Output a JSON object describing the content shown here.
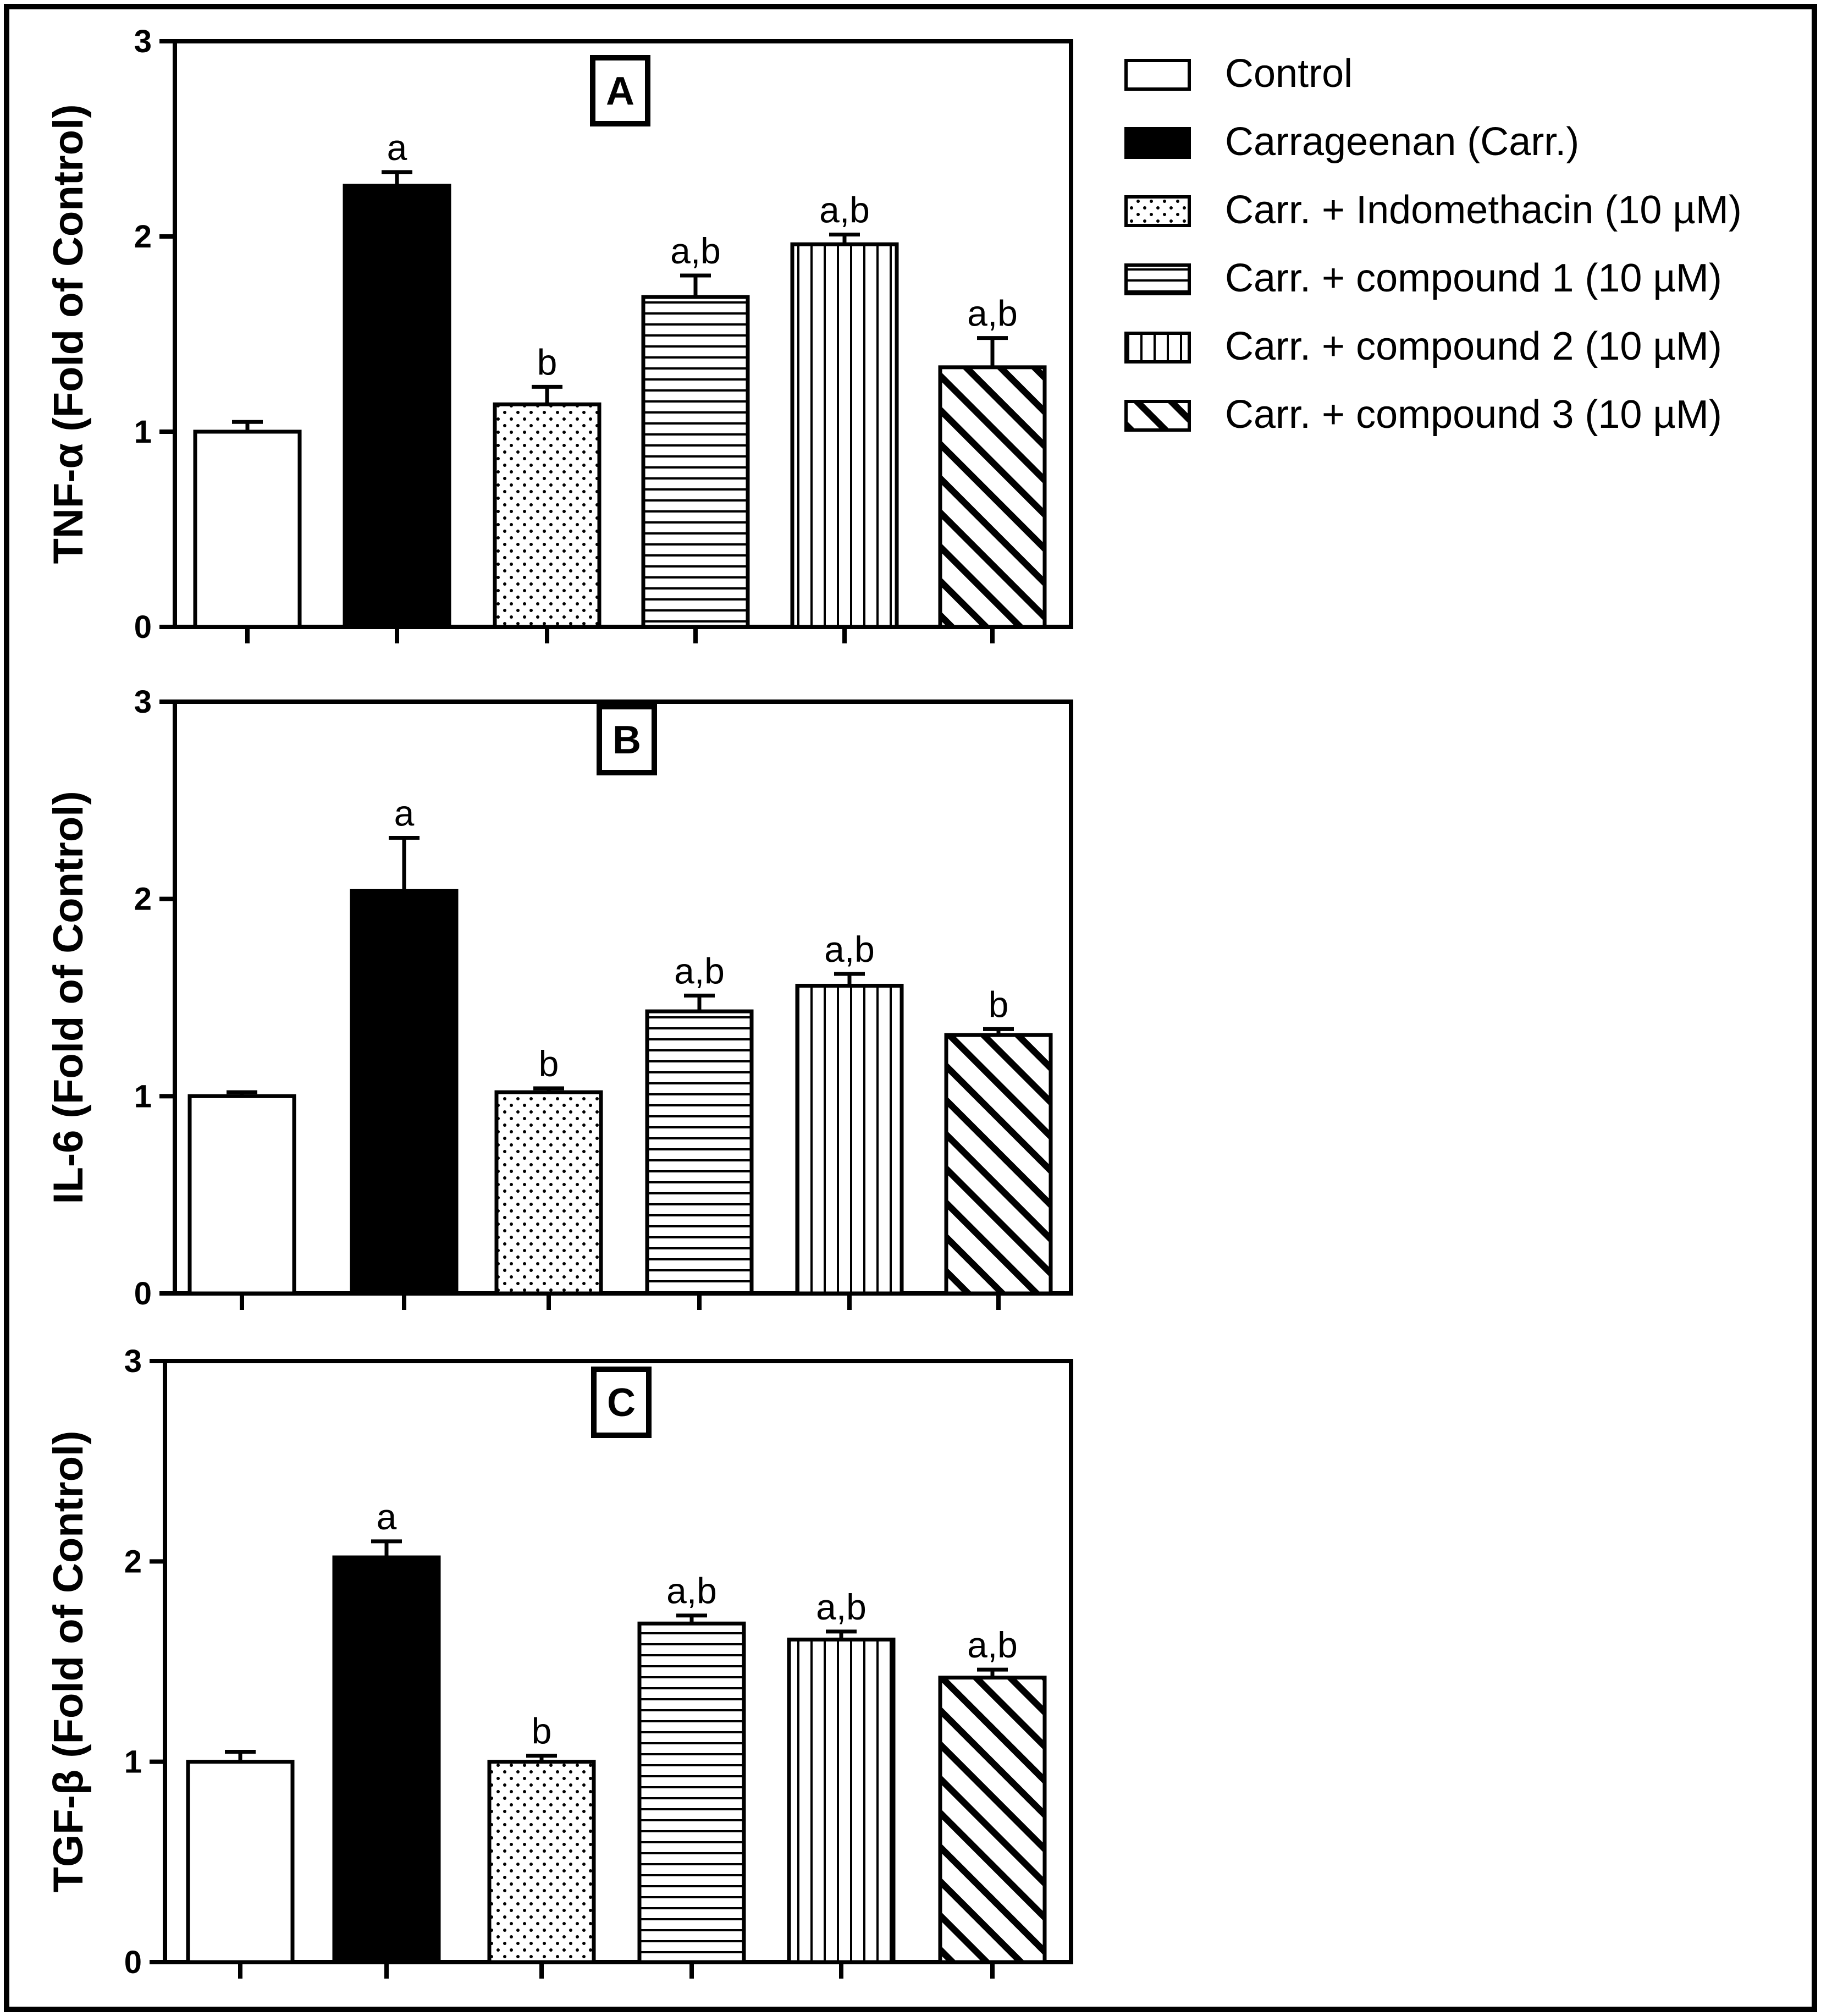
{
  "chart_data": [
    {
      "type": "bar",
      "panel": "A",
      "ylabel": "TNF-α (Fold of Control)",
      "ylim": [
        0,
        3
      ],
      "yticks": [
        "0",
        "1",
        "2",
        "3"
      ],
      "categories": [
        "Control",
        "Carrageenan (Carr.)",
        "Carr. + Indomethacin (10 µM)",
        "Carr. + compound 1 (10 µM)",
        "Carr. + compound 2 (10 µM)",
        "Carr. + compound 3 (10 µM)"
      ],
      "values": [
        1.0,
        2.26,
        1.14,
        1.69,
        1.96,
        1.33
      ],
      "errors": [
        0.05,
        0.07,
        0.09,
        0.11,
        0.05,
        0.15
      ],
      "annotations": [
        "",
        "a",
        "b",
        "a,b",
        "a,b",
        "a,b"
      ]
    },
    {
      "type": "bar",
      "panel": "B",
      "ylabel": "IL-6 (Fold of Control)",
      "ylim": [
        0,
        3
      ],
      "yticks": [
        "0",
        "1",
        "2",
        "3"
      ],
      "categories": [
        "Control",
        "Carrageenan (Carr.)",
        "Carr. + Indomethacin (10 µM)",
        "Carr. + compound 1 (10 µM)",
        "Carr. + compound 2 (10 µM)",
        "Carr. + compound 3 (10 µM)"
      ],
      "values": [
        1.0,
        2.04,
        1.02,
        1.43,
        1.56,
        1.31
      ],
      "errors": [
        0.02,
        0.27,
        0.02,
        0.08,
        0.06,
        0.03
      ],
      "annotations": [
        "",
        "a",
        "b",
        "a,b",
        "a,b",
        "b"
      ]
    },
    {
      "type": "bar",
      "panel": "C",
      "ylabel": "TGF-β (Fold of Control)",
      "ylim": [
        0,
        3
      ],
      "yticks": [
        "0",
        "1",
        "2",
        "3"
      ],
      "categories": [
        "Control",
        "Carrageenan (Carr.)",
        "Carr. + Indomethacin (10 µM)",
        "Carr. + compound 1 (10 µM)",
        "Carr. + compound 2 (10 µM)",
        "Carr. + compound 3 (10 µM)"
      ],
      "values": [
        1.0,
        2.02,
        1.0,
        1.69,
        1.61,
        1.42
      ],
      "errors": [
        0.05,
        0.08,
        0.03,
        0.04,
        0.04,
        0.04
      ],
      "annotations": [
        "",
        "a",
        "b",
        "a,b",
        "a,b",
        "a,b"
      ]
    }
  ],
  "legend": {
    "placement": "top-right",
    "items": [
      {
        "label": "Control",
        "pattern": "white"
      },
      {
        "label": "Carrageenan (Carr.)",
        "pattern": "black"
      },
      {
        "label": "Carr. + Indomethacin (10  µM)",
        "pattern": "dots"
      },
      {
        "label": "Carr. + compound 1 (10  µM)",
        "pattern": "hlines"
      },
      {
        "label": "Carr. + compound 2 (10  µM)",
        "pattern": "vlines"
      },
      {
        "label": "Carr. + compound 3 (10  µM)",
        "pattern": "diag"
      }
    ]
  },
  "colors": {
    "stroke": "#000000",
    "background": "#ffffff"
  }
}
